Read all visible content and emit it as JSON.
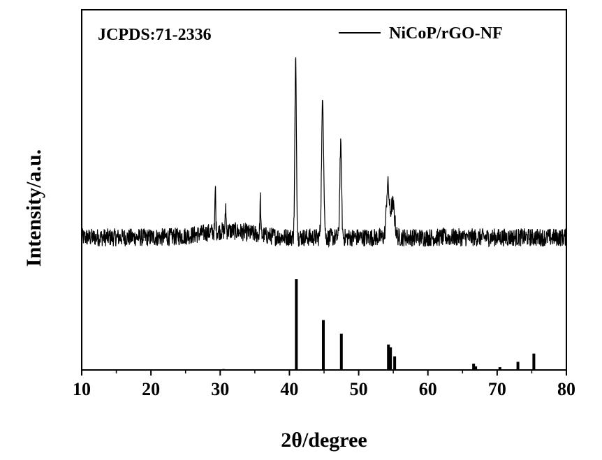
{
  "chart_data": {
    "type": "line",
    "xlabel": "2θ/degree",
    "ylabel": "Intensity/a.u.",
    "xlim": [
      10,
      80
    ],
    "xticks": [
      "10",
      "20",
      "30",
      "40",
      "50",
      "60",
      "70",
      "80"
    ],
    "y_ticks_shown": false,
    "grid": false,
    "legend_position": "top-right",
    "annotation": "JCPDS:71-2336",
    "series": [
      {
        "name": "NiCoP/rGO-NF",
        "type": "line",
        "color": "#000000",
        "baseline": 0.27,
        "noise_amplitude": 0.035,
        "peaks": [
          {
            "x": 29.3,
            "height": 0.17,
            "width": 0.08
          },
          {
            "x": 30.8,
            "height": 0.1,
            "width": 0.08
          },
          {
            "x": 35.8,
            "height": 0.14,
            "width": 0.08
          },
          {
            "x": 40.9,
            "height": 0.68,
            "width": 0.16
          },
          {
            "x": 44.8,
            "height": 0.52,
            "width": 0.22
          },
          {
            "x": 47.4,
            "height": 0.35,
            "width": 0.18
          },
          {
            "x": 54.2,
            "height": 0.2,
            "width": 0.28
          },
          {
            "x": 54.9,
            "height": 0.13,
            "width": 0.4
          }
        ]
      },
      {
        "name": "JCPDS:71-2336",
        "type": "stick",
        "color": "#000000",
        "x": [
          30.5,
          31.8,
          41.0,
          44.9,
          47.5,
          54.3,
          54.6,
          55.2,
          66.6,
          66.9,
          70.4,
          73.0,
          75.3
        ],
        "y": [
          0.01,
          0.005,
          1.0,
          0.55,
          0.4,
          0.28,
          0.25,
          0.15,
          0.07,
          0.04,
          0.03,
          0.09,
          0.18
        ]
      }
    ]
  }
}
